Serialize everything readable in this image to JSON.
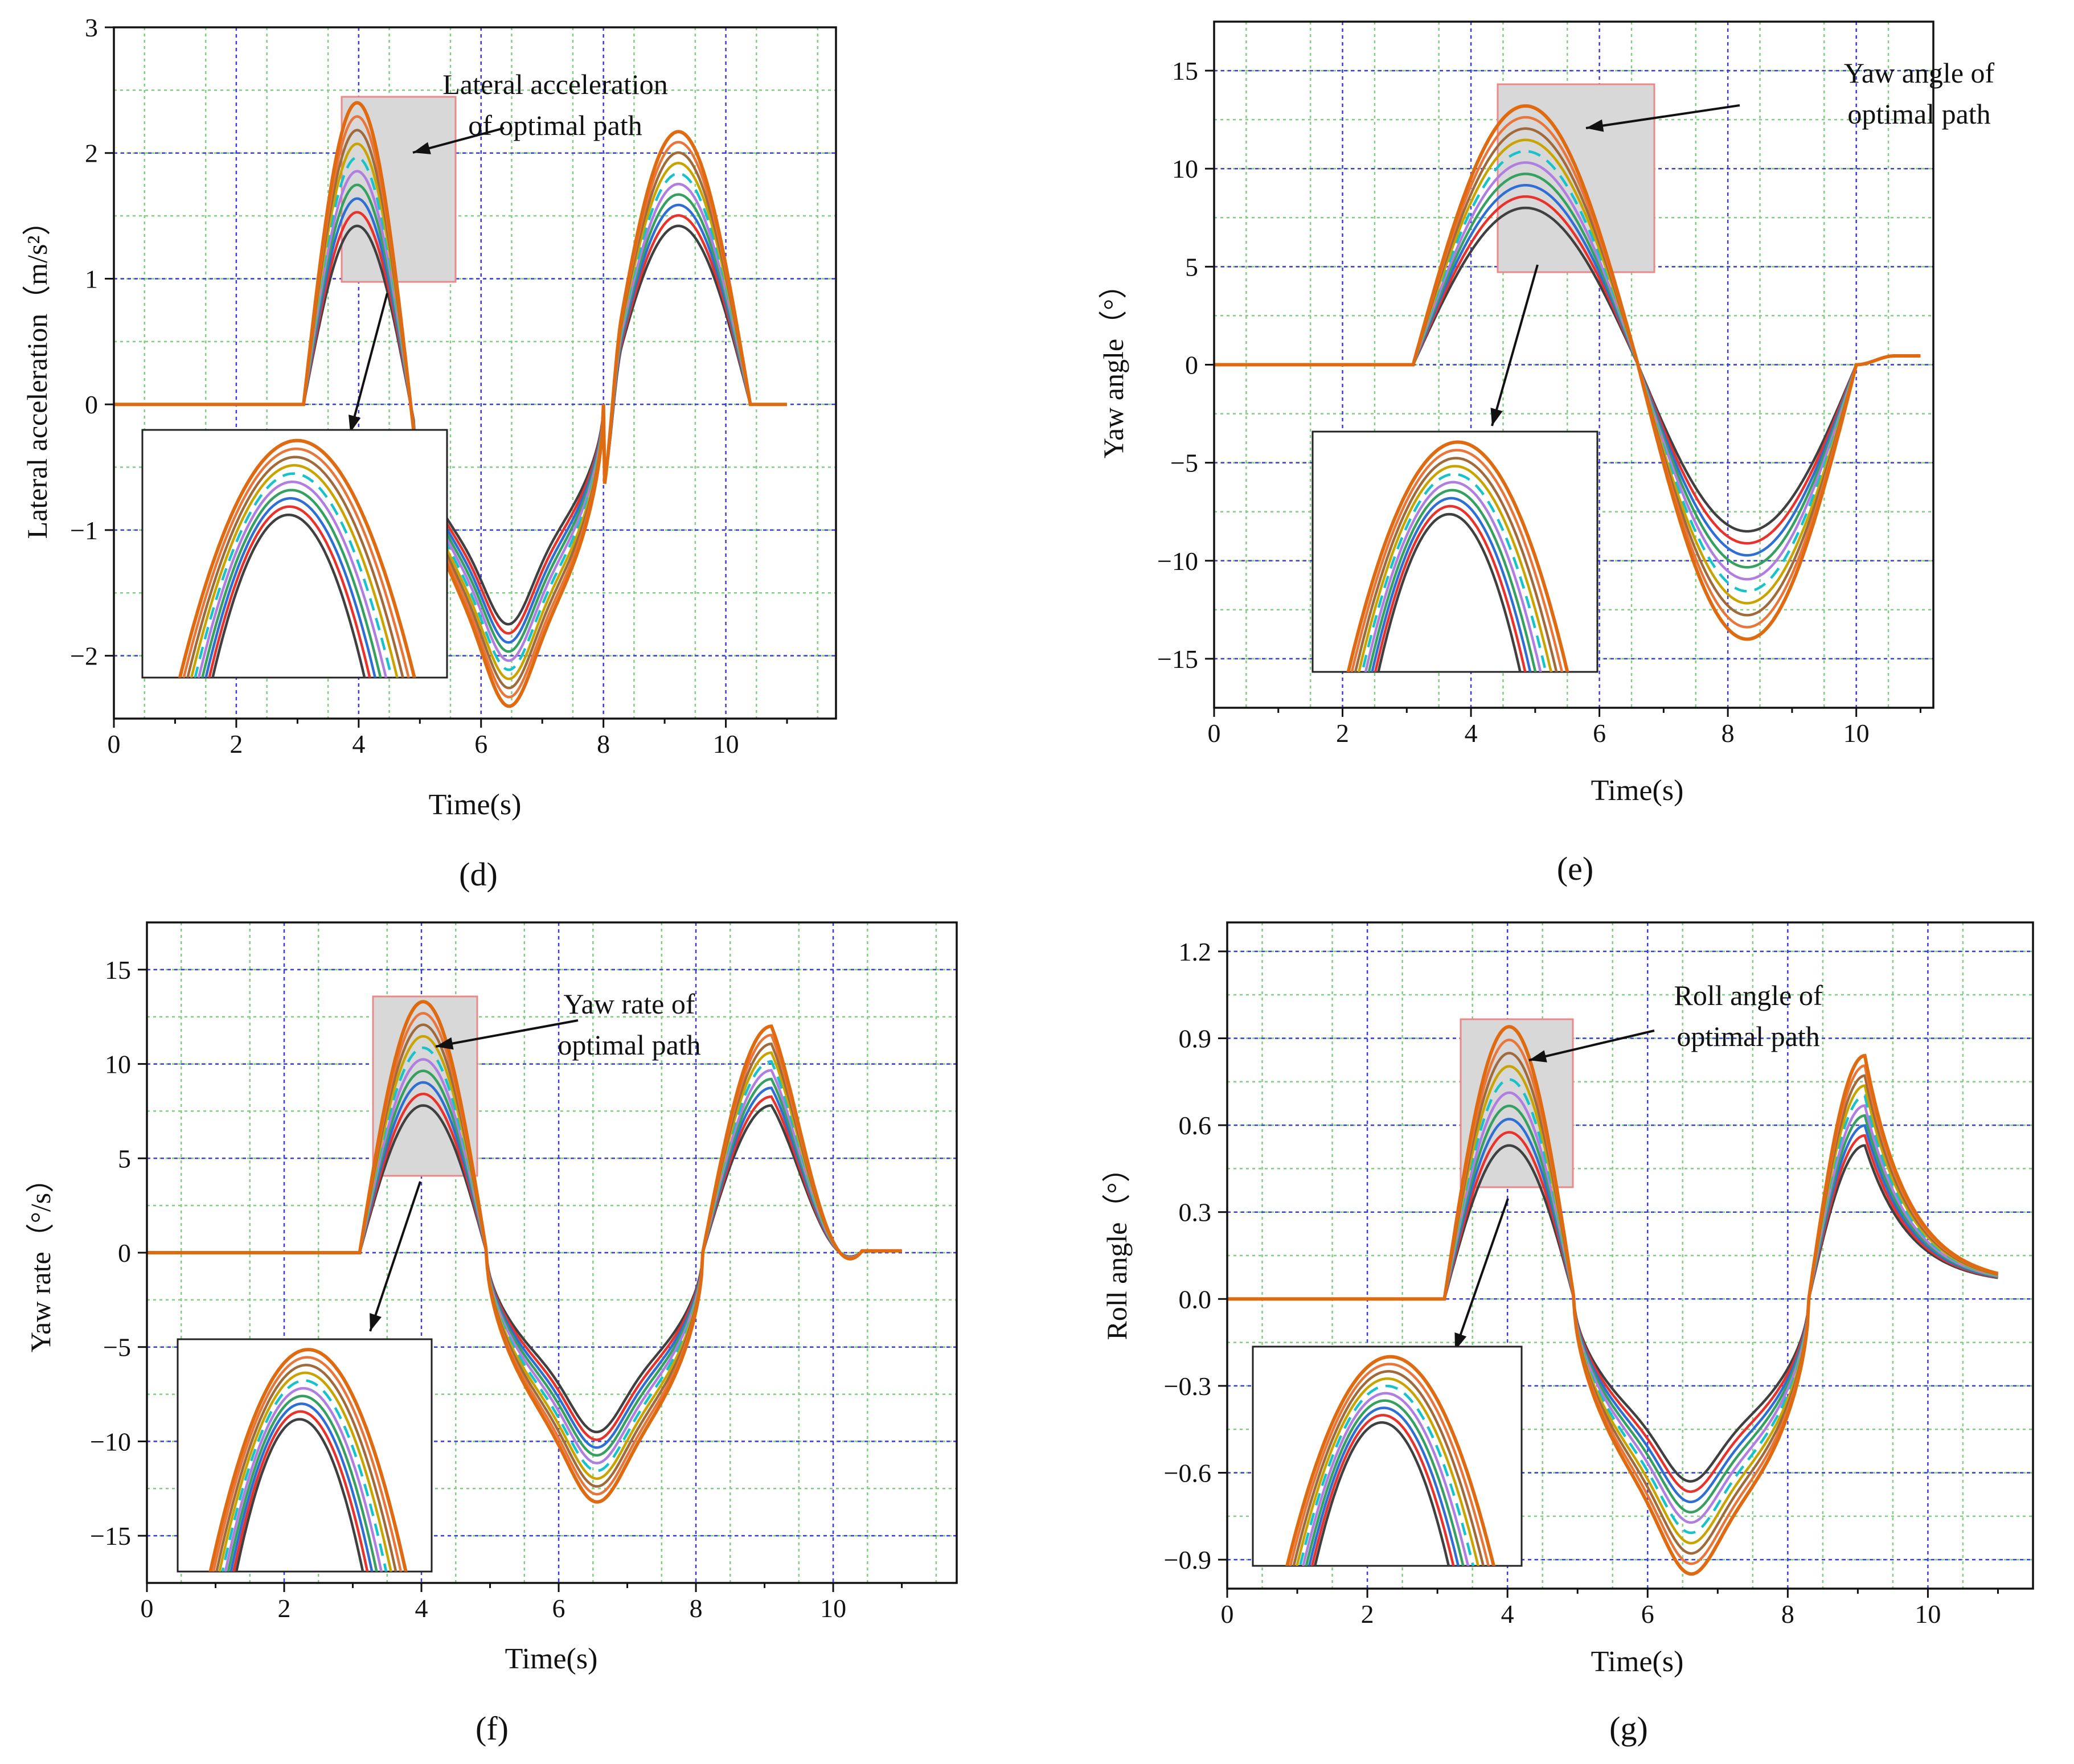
{
  "figure_title": "",
  "chart_data": [
    {
      "type": "line",
      "panel_label": "d",
      "panel_label_display": "(d)",
      "xlabel": "Time(s)",
      "ylabel": "Lateral acceleration（m/s²）",
      "xlim": [
        0,
        11.8
      ],
      "ylim": [
        -2.5,
        3
      ],
      "xticks": [
        "0",
        "2",
        "4",
        "6",
        "8",
        "10"
      ],
      "yticks": [
        "3",
        "2",
        "1",
        "0",
        "−1",
        "−2"
      ],
      "ytick_values": [
        3,
        2,
        1,
        0,
        -1,
        -2
      ],
      "annotation": [
        "Lateral acceleration",
        "of optimal path"
      ],
      "profile": "lateral_acceleration",
      "series_peak_values": [
        1.42,
        1.55,
        1.7,
        1.85,
        1.98,
        2.1,
        2.2,
        2.3,
        2.38,
        2.4
      ]
    },
    {
      "type": "line",
      "panel_label": "e",
      "panel_label_display": "(e)",
      "xlabel": "Time(s)",
      "ylabel": "Yaw angle（°）",
      "xlim": [
        0,
        11.2
      ],
      "ylim": [
        -17.5,
        17.5
      ],
      "xticks": [
        "0",
        "2",
        "4",
        "6",
        "8",
        "10"
      ],
      "yticks": [
        "15",
        "10",
        "5",
        "0",
        "−5",
        "−10",
        "−15"
      ],
      "ytick_values": [
        15,
        10,
        5,
        0,
        -5,
        -10,
        -15
      ],
      "annotation": [
        "Yaw angle of",
        "optimal path"
      ],
      "profile": "yaw_angle",
      "series_peak_values": [
        8.0,
        8.8,
        9.6,
        10.3,
        11.0,
        11.7,
        12.3,
        12.8,
        13.1,
        13.2
      ]
    },
    {
      "type": "line",
      "panel_label": "f",
      "panel_label_display": "(f)",
      "xlabel": "Time(s)",
      "ylabel": "Yaw rate（°/s）",
      "xlim": [
        0,
        11.8
      ],
      "ylim": [
        -17.5,
        17.5
      ],
      "xticks": [
        "0",
        "2",
        "4",
        "6",
        "8",
        "10"
      ],
      "yticks": [
        "15",
        "10",
        "5",
        "0",
        "−5",
        "−10",
        "−15"
      ],
      "ytick_values": [
        15,
        10,
        5,
        0,
        -5,
        -10,
        -15
      ],
      "annotation": [
        "Yaw rate of",
        "optimal path"
      ],
      "profile": "yaw_rate",
      "series_peak_values": [
        7.8,
        8.6,
        9.4,
        10.2,
        11.0,
        11.7,
        12.3,
        12.8,
        13.1,
        13.3
      ]
    },
    {
      "type": "line",
      "panel_label": "g",
      "panel_label_display": "(g)",
      "xlabel": "Time(s)",
      "ylabel": "Roll angle（°）",
      "xlim": [
        0,
        11.5
      ],
      "ylim": [
        -1.0,
        1.3
      ],
      "xticks": [
        "0",
        "2",
        "4",
        "6",
        "8",
        "10"
      ],
      "yticks": [
        "1.2",
        "0.9",
        "0.6",
        "0.3",
        "0.0",
        "−0.3",
        "−0.6",
        "−0.9"
      ],
      "ytick_values": [
        1.2,
        0.9,
        0.6,
        0.3,
        0.0,
        -0.3,
        -0.6,
        -0.9
      ],
      "annotation": [
        "Roll angle of",
        "optimal path"
      ],
      "profile": "roll_angle",
      "series_peak_values": [
        0.53,
        0.59,
        0.65,
        0.7,
        0.75,
        0.8,
        0.85,
        0.89,
        0.92,
        0.94
      ]
    }
  ],
  "series_colors": [
    "#404040",
    "#e8322b",
    "#2f6fd4",
    "#35a060",
    "#b07ee0",
    "#17c2c8",
    "#c9a400",
    "#a06a3a",
    "#e8763a",
    "#e06a10"
  ],
  "highlight_series_index": 5,
  "grid_colors": {
    "major": "#3c3cd8",
    "minor": "#7ed07e"
  },
  "zoom_box_color": "#e88a8a",
  "zoom_fill_color": "#d8d8d8"
}
